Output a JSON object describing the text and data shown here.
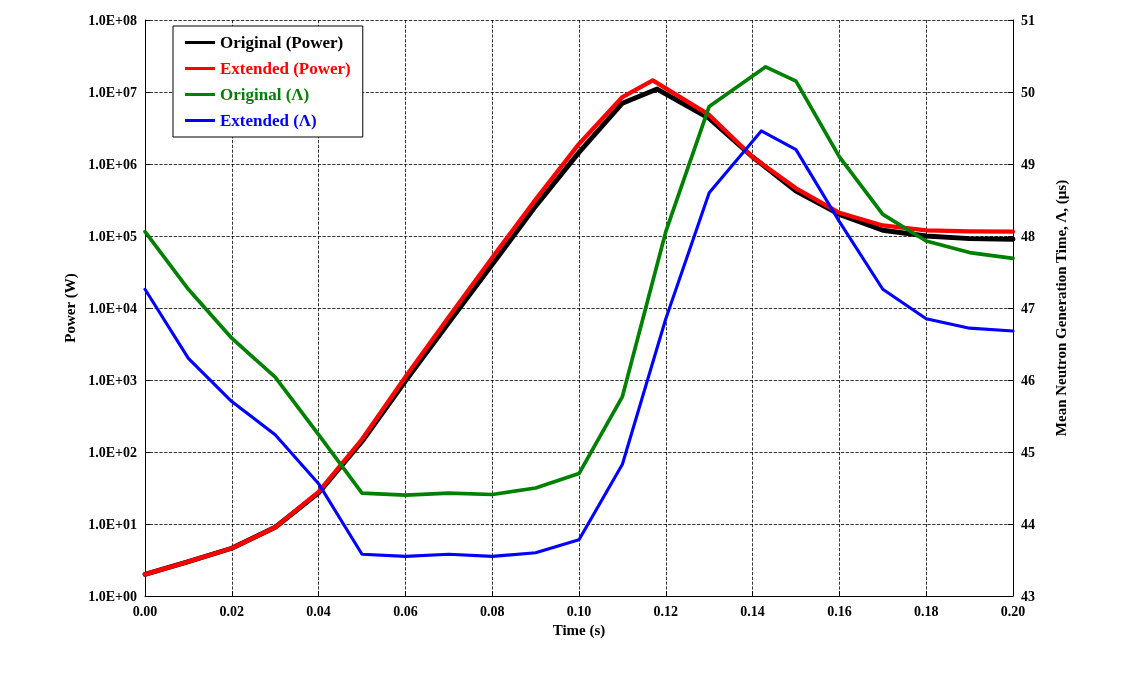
{
  "chart_data": {
    "type": "line",
    "xlabel": "Time (s)",
    "ylabel": "Power (W)",
    "y2label": "Mean Neutron Generation Time, Λ, (μs)",
    "log": "y",
    "grid": true,
    "legend": "top left",
    "line_style": "solid",
    "marker": "none",
    "xlim": [
      0,
      0.2
    ],
    "xticks": [
      {
        "value": 0,
        "label": "0.00"
      },
      {
        "value": 0.02,
        "label": "0.02"
      },
      {
        "value": 0.04,
        "label": "0.04"
      },
      {
        "value": 0.06,
        "label": "0.06"
      },
      {
        "value": 0.08,
        "label": "0.08"
      },
      {
        "value": 0.1,
        "label": "0.10"
      },
      {
        "value": 0.12,
        "label": "0.12"
      },
      {
        "value": 0.14,
        "label": "0.14"
      },
      {
        "value": 0.16,
        "label": "0.16"
      },
      {
        "value": 0.18,
        "label": "0.18"
      },
      {
        "value": 0.2,
        "label": "0.20"
      }
    ],
    "ylim": [
      1,
      100000000
    ],
    "yticks": [
      {
        "value": 1,
        "label": "1.0E+00"
      },
      {
        "value": 10,
        "label": "1.0E+01"
      },
      {
        "value": 100,
        "label": "1.0E+02"
      },
      {
        "value": 1000,
        "label": "1.0E+03"
      },
      {
        "value": 10000,
        "label": "1.0E+04"
      },
      {
        "value": 100000,
        "label": "1.0E+05"
      },
      {
        "value": 1000000,
        "label": "1.0E+06"
      },
      {
        "value": 10000000,
        "label": "1.0E+07"
      },
      {
        "value": 100000000,
        "label": "1.0E+08"
      }
    ],
    "y2lim": [
      43,
      51
    ],
    "y2ticks": [
      43,
      44,
      45,
      46,
      47,
      48,
      49,
      50,
      51
    ],
    "series": [
      {
        "name": "Original (Power)",
        "color": "#000000",
        "x": [
          0,
          0.01,
          0.02,
          0.03,
          0.04,
          0.05,
          0.06,
          0.07,
          0.08,
          0.09,
          0.1,
          0.11,
          0.118,
          0.13,
          0.14,
          0.15,
          0.16,
          0.17,
          0.18,
          0.19,
          0.2
        ],
        "values": [
          2,
          3,
          4.6,
          9,
          27,
          140,
          970,
          6300,
          40000,
          260000,
          1450000,
          7000000,
          11000000,
          4300000,
          1250000,
          420000,
          200000,
          120000,
          100000,
          92000,
          90000
        ]
      },
      {
        "name": "Extended (Power)",
        "color": "#ff0000",
        "x": [
          0,
          0.01,
          0.02,
          0.03,
          0.04,
          0.05,
          0.06,
          0.07,
          0.08,
          0.09,
          0.1,
          0.11,
          0.117,
          0.13,
          0.14,
          0.15,
          0.16,
          0.17,
          0.18,
          0.19,
          0.2
        ],
        "values": [
          2,
          3,
          4.6,
          9,
          28,
          150,
          1100,
          7500,
          50000,
          320000,
          1900000,
          8500000,
          14500000,
          4800000,
          1250000,
          460000,
          210000,
          140000,
          120000,
          116000,
          115000
        ]
      },
      {
        "name": "Original (Λ)",
        "color": "#008000",
        "axis": "y2",
        "x": [
          0,
          0.01,
          0.02,
          0.03,
          0.04,
          0.05,
          0.06,
          0.07,
          0.08,
          0.09,
          0.1,
          0.11,
          0.12,
          0.13,
          0.143,
          0.15,
          0.16,
          0.17,
          0.18,
          0.19,
          0.2
        ],
        "values": [
          48.06,
          47.26,
          46.58,
          46.04,
          45.24,
          44.43,
          44.4,
          44.43,
          44.41,
          44.5,
          44.7,
          45.77,
          48.06,
          49.8,
          50.35,
          50.15,
          49.1,
          48.3,
          47.93,
          47.77,
          47.69
        ]
      },
      {
        "name": "Extended (Λ)",
        "color": "#0000ff",
        "axis": "y2",
        "x": [
          0,
          0.01,
          0.02,
          0.03,
          0.04,
          0.05,
          0.06,
          0.07,
          0.08,
          0.09,
          0.1,
          0.11,
          0.12,
          0.13,
          0.142,
          0.15,
          0.16,
          0.17,
          0.18,
          0.19,
          0.2
        ],
        "values": [
          47.26,
          46.3,
          45.7,
          45.24,
          44.56,
          43.58,
          43.55,
          43.58,
          43.55,
          43.6,
          43.78,
          44.83,
          46.85,
          48.6,
          49.46,
          49.2,
          48.2,
          47.26,
          46.85,
          46.72,
          46.68
        ]
      }
    ]
  }
}
